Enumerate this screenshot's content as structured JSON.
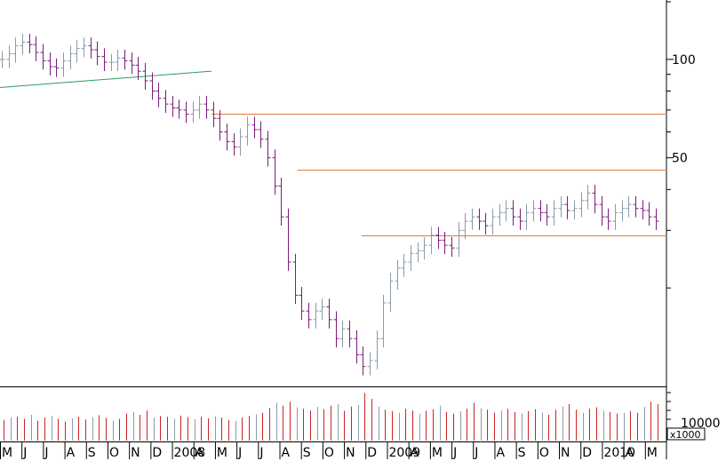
{
  "chart_data": {
    "type": "ohlc",
    "title": "",
    "price_axis": {
      "scale": "log",
      "ylim": [
        10,
        150
      ],
      "tick_labels": [
        "100",
        "50"
      ],
      "tick_values": [
        100,
        50
      ]
    },
    "volume_axis": {
      "tick_label": "10000",
      "multiplier_label": "x1000"
    },
    "x_axis": {
      "labels": [
        "M",
        "J",
        "J",
        "A",
        "S",
        "O",
        "N",
        "D",
        "2008",
        "A",
        "M",
        "J",
        "J",
        "A",
        "S",
        "O",
        "N",
        "D",
        "2009",
        "A",
        "M",
        "J",
        "J",
        "A",
        "S",
        "O",
        "N",
        "D",
        "2010",
        "A",
        "M"
      ]
    },
    "horizontal_lines": [
      {
        "value": 68,
        "color": "#e07b39",
        "from_label_index": 9
      },
      {
        "value": 46,
        "color": "#e07b39",
        "from_label_index": 13
      },
      {
        "value": 29,
        "color": "#e07b39",
        "from_label_index": 16
      }
    ],
    "trendline": {
      "from": 82,
      "to": 92,
      "color": "#2a9d5c"
    },
    "close_path": [
      100,
      104,
      110,
      113,
      111,
      105,
      99,
      95,
      94,
      99,
      104,
      108,
      110,
      107,
      102,
      98,
      98,
      101,
      99,
      96,
      92,
      86,
      80,
      76,
      73,
      71,
      70,
      68,
      70,
      73,
      70,
      66,
      60,
      56,
      54,
      58,
      63,
      61,
      57,
      50,
      41,
      33,
      24,
      19,
      17,
      16,
      17,
      17.5,
      16,
      14,
      15,
      14,
      12.5,
      11.5,
      12,
      14,
      18,
      21,
      23,
      24,
      25.5,
      26,
      27,
      29,
      28,
      27,
      26.5,
      30,
      32,
      33,
      32,
      31,
      33,
      34,
      35,
      33,
      32,
      34,
      35,
      34,
      33,
      35,
      36,
      34.5,
      35,
      37,
      39,
      36,
      33,
      32,
      34,
      35,
      36,
      35,
      34.5,
      33,
      32
    ],
    "volume_series": [
      5.2,
      5.8,
      6.0,
      5.5,
      6.5,
      5.0,
      5.8,
      6.2,
      5.5,
      4.8,
      5.6,
      6.0,
      5.3,
      5.9,
      6.4,
      5.7,
      5.0,
      5.5,
      6.8,
      7.2,
      6.5,
      7.6,
      5.8,
      6.2,
      6.0,
      5.5,
      6.3,
      5.9,
      5.4,
      6.0,
      5.6,
      6.1,
      5.8,
      5.2,
      4.9,
      5.8,
      6.2,
      6.6,
      7.0,
      8.2,
      9.5,
      8.8,
      9.8,
      8.4,
      8.0,
      7.6,
      8.5,
      7.9,
      8.8,
      9.2,
      7.5,
      8.6,
      9.0,
      12.0,
      10.5,
      8.6,
      7.8,
      7.4,
      7.0,
      8.0,
      7.6,
      6.8,
      7.5,
      7.9,
      8.8,
      7.2,
      6.8,
      7.4,
      8.0,
      9.5,
      8.2,
      7.8,
      7.0,
      7.6,
      8.0,
      7.2,
      6.8,
      7.4,
      7.9,
      7.0,
      6.5,
      7.8,
      8.6,
      9.2,
      7.8,
      7.0,
      8.0,
      8.4,
      7.5,
      7.2,
      6.8,
      7.0,
      7.4,
      7.0,
      8.5,
      9.8,
      9.2
    ]
  }
}
